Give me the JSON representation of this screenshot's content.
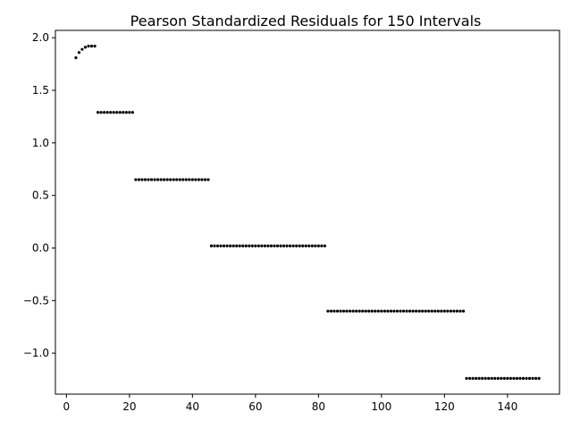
{
  "chart_data": {
    "type": "scatter",
    "title": "Pearson Standardized Residuals for 150 Intervals",
    "xlabel": "",
    "ylabel": "",
    "xlim": [
      -3.5,
      156.5
    ],
    "ylim": [
      -1.39,
      2.07
    ],
    "xticks": [
      0,
      20,
      40,
      60,
      80,
      100,
      120,
      140
    ],
    "xtick_labels": [
      "0",
      "20",
      "40",
      "60",
      "80",
      "100",
      "120",
      "140"
    ],
    "yticks": [
      -1.0,
      -0.5,
      0.0,
      0.5,
      1.0,
      1.5,
      2.0
    ],
    "ytick_labels": [
      "−1.0",
      "−0.5",
      "0.0",
      "0.5",
      "1.0",
      "1.5",
      "2.0"
    ],
    "grid": false,
    "legend": "none",
    "marker_color": "#000000",
    "series": [
      {
        "points": [
          [
            3,
            1.81
          ],
          [
            4,
            1.86
          ],
          [
            5,
            1.89
          ],
          [
            6,
            1.91
          ],
          [
            7,
            1.92
          ],
          [
            8,
            1.92
          ],
          [
            9,
            1.92
          ]
        ]
      },
      {
        "x_range": [
          10,
          21
        ],
        "y": 1.29
      },
      {
        "x_range": [
          22,
          45
        ],
        "y": 0.65
      },
      {
        "x_range": [
          46,
          82
        ],
        "y": 0.02
      },
      {
        "x_range": [
          83,
          126
        ],
        "y": -0.6
      },
      {
        "x_range": [
          127,
          150
        ],
        "y": -1.24
      }
    ]
  }
}
